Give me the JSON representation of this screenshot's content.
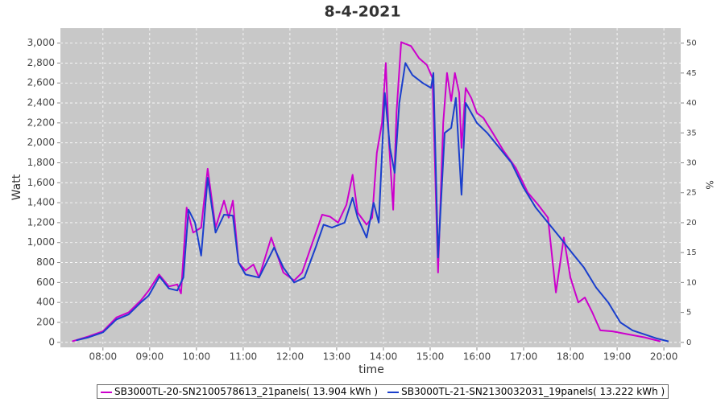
{
  "chart_data": {
    "type": "line",
    "title": "8-4-2021",
    "xlabel": "time",
    "ylabel": "Watt",
    "y2label": "%",
    "xlim": [
      7.09,
      20.36
    ],
    "xticks": [
      {
        "value": 8,
        "label": "08:00"
      },
      {
        "value": 9,
        "label": "09:00"
      },
      {
        "value": 10,
        "label": "10:00"
      },
      {
        "value": 11,
        "label": "11:00"
      },
      {
        "value": 12,
        "label": "12:00"
      },
      {
        "value": 13,
        "label": "13:00"
      },
      {
        "value": 14,
        "label": "14:00"
      },
      {
        "value": 15,
        "label": "15:00"
      },
      {
        "value": 16,
        "label": "16:00"
      },
      {
        "value": 17,
        "label": "17:00"
      },
      {
        "value": 18,
        "label": "18:00"
      },
      {
        "value": 19,
        "label": "19:00"
      },
      {
        "value": 20,
        "label": "20:00"
      }
    ],
    "ylim": [
      -50,
      3150
    ],
    "yticks": [
      0,
      200,
      400,
      600,
      800,
      {
        "value": 1000,
        "label": "1,000"
      },
      {
        "value": 1200,
        "label": "1,200"
      },
      {
        "value": 1400,
        "label": "1,400"
      },
      {
        "value": 1600,
        "label": "1,600"
      },
      {
        "value": 1800,
        "label": "1,800"
      },
      {
        "value": 2000,
        "label": "2,000"
      },
      {
        "value": 2200,
        "label": "2,200"
      },
      {
        "value": 2400,
        "label": "2,400"
      },
      {
        "value": 2600,
        "label": "2,600"
      },
      {
        "value": 2800,
        "label": "2,800"
      },
      {
        "value": 3000,
        "label": "3,000"
      }
    ],
    "y2lim": [
      -0.83,
      52.5
    ],
    "y2ticks": [
      0,
      5,
      10,
      15,
      20,
      25,
      30,
      35,
      40,
      45,
      50
    ],
    "grid": true,
    "series": [
      {
        "name": "SB3000TL-20-SN2100578613_21panels( 13.904 kWh )",
        "color": "#cc00cc",
        "x": [
          7.34,
          7.69,
          8.0,
          8.29,
          8.55,
          8.81,
          8.98,
          9.2,
          9.41,
          9.59,
          9.67,
          9.79,
          9.93,
          10.1,
          10.24,
          10.41,
          10.59,
          10.69,
          10.78,
          10.9,
          11.05,
          11.22,
          11.34,
          11.6,
          11.86,
          12.09,
          12.26,
          12.52,
          12.69,
          12.86,
          13.03,
          13.21,
          13.34,
          13.45,
          13.64,
          13.76,
          13.86,
          13.97,
          14.05,
          14.12,
          14.21,
          14.28,
          14.38,
          14.59,
          14.76,
          14.93,
          15.05,
          15.17,
          15.28,
          15.36,
          15.45,
          15.53,
          15.62,
          15.67,
          15.76,
          15.88,
          16.0,
          16.14,
          16.34,
          16.57,
          16.83,
          17.09,
          17.31,
          17.52,
          17.69,
          17.86,
          18.0,
          18.17,
          18.31,
          18.47,
          18.64,
          18.9,
          19.24,
          19.59,
          19.93
        ],
        "values": [
          10,
          60,
          110,
          250,
          300,
          420,
          520,
          680,
          560,
          580,
          490,
          1350,
          1100,
          1150,
          1740,
          1150,
          1420,
          1250,
          1420,
          800,
          720,
          780,
          650,
          1050,
          700,
          620,
          700,
          1050,
          1280,
          1260,
          1200,
          1380,
          1680,
          1300,
          1180,
          1250,
          1900,
          2200,
          2800,
          2000,
          1330,
          2300,
          3010,
          2970,
          2850,
          2780,
          2650,
          700,
          2200,
          2700,
          2420,
          2700,
          2500,
          1950,
          2550,
          2450,
          2300,
          2250,
          2100,
          1920,
          1750,
          1500,
          1380,
          1250,
          500,
          1050,
          650,
          400,
          450,
          300,
          120,
          110,
          80,
          50,
          10
        ]
      },
      {
        "name": "SB3000TL-21-SN2130032031_19panels( 13.222 kWh )",
        "color": "#1a3fcc",
        "x": [
          7.43,
          7.69,
          8.0,
          8.29,
          8.55,
          8.81,
          8.98,
          9.21,
          9.41,
          9.59,
          9.72,
          9.83,
          9.97,
          10.1,
          10.24,
          10.41,
          10.59,
          10.78,
          10.9,
          11.05,
          11.34,
          11.66,
          11.86,
          12.09,
          12.31,
          12.55,
          12.72,
          12.9,
          13.17,
          13.34,
          13.45,
          13.64,
          13.79,
          13.9,
          14.03,
          14.14,
          14.24,
          14.34,
          14.47,
          14.62,
          14.84,
          15.02,
          15.07,
          15.17,
          15.31,
          15.45,
          15.55,
          15.67,
          15.76,
          16.0,
          16.22,
          16.48,
          16.74,
          17.0,
          17.26,
          17.52,
          17.78,
          18.03,
          18.29,
          18.55,
          18.81,
          19.07,
          19.33,
          19.59,
          19.84,
          20.1
        ],
        "values": [
          20,
          50,
          100,
          230,
          280,
          400,
          470,
          660,
          540,
          520,
          650,
          1330,
          1200,
          870,
          1650,
          1100,
          1280,
          1270,
          800,
          680,
          650,
          950,
          750,
          600,
          650,
          950,
          1180,
          1150,
          1200,
          1450,
          1250,
          1050,
          1400,
          1200,
          2500,
          1950,
          1700,
          2400,
          2800,
          2680,
          2600,
          2550,
          2700,
          850,
          2100,
          2150,
          2450,
          1480,
          2400,
          2200,
          2100,
          1950,
          1800,
          1550,
          1350,
          1200,
          1050,
          900,
          750,
          550,
          400,
          200,
          120,
          80,
          40,
          10
        ]
      }
    ]
  }
}
